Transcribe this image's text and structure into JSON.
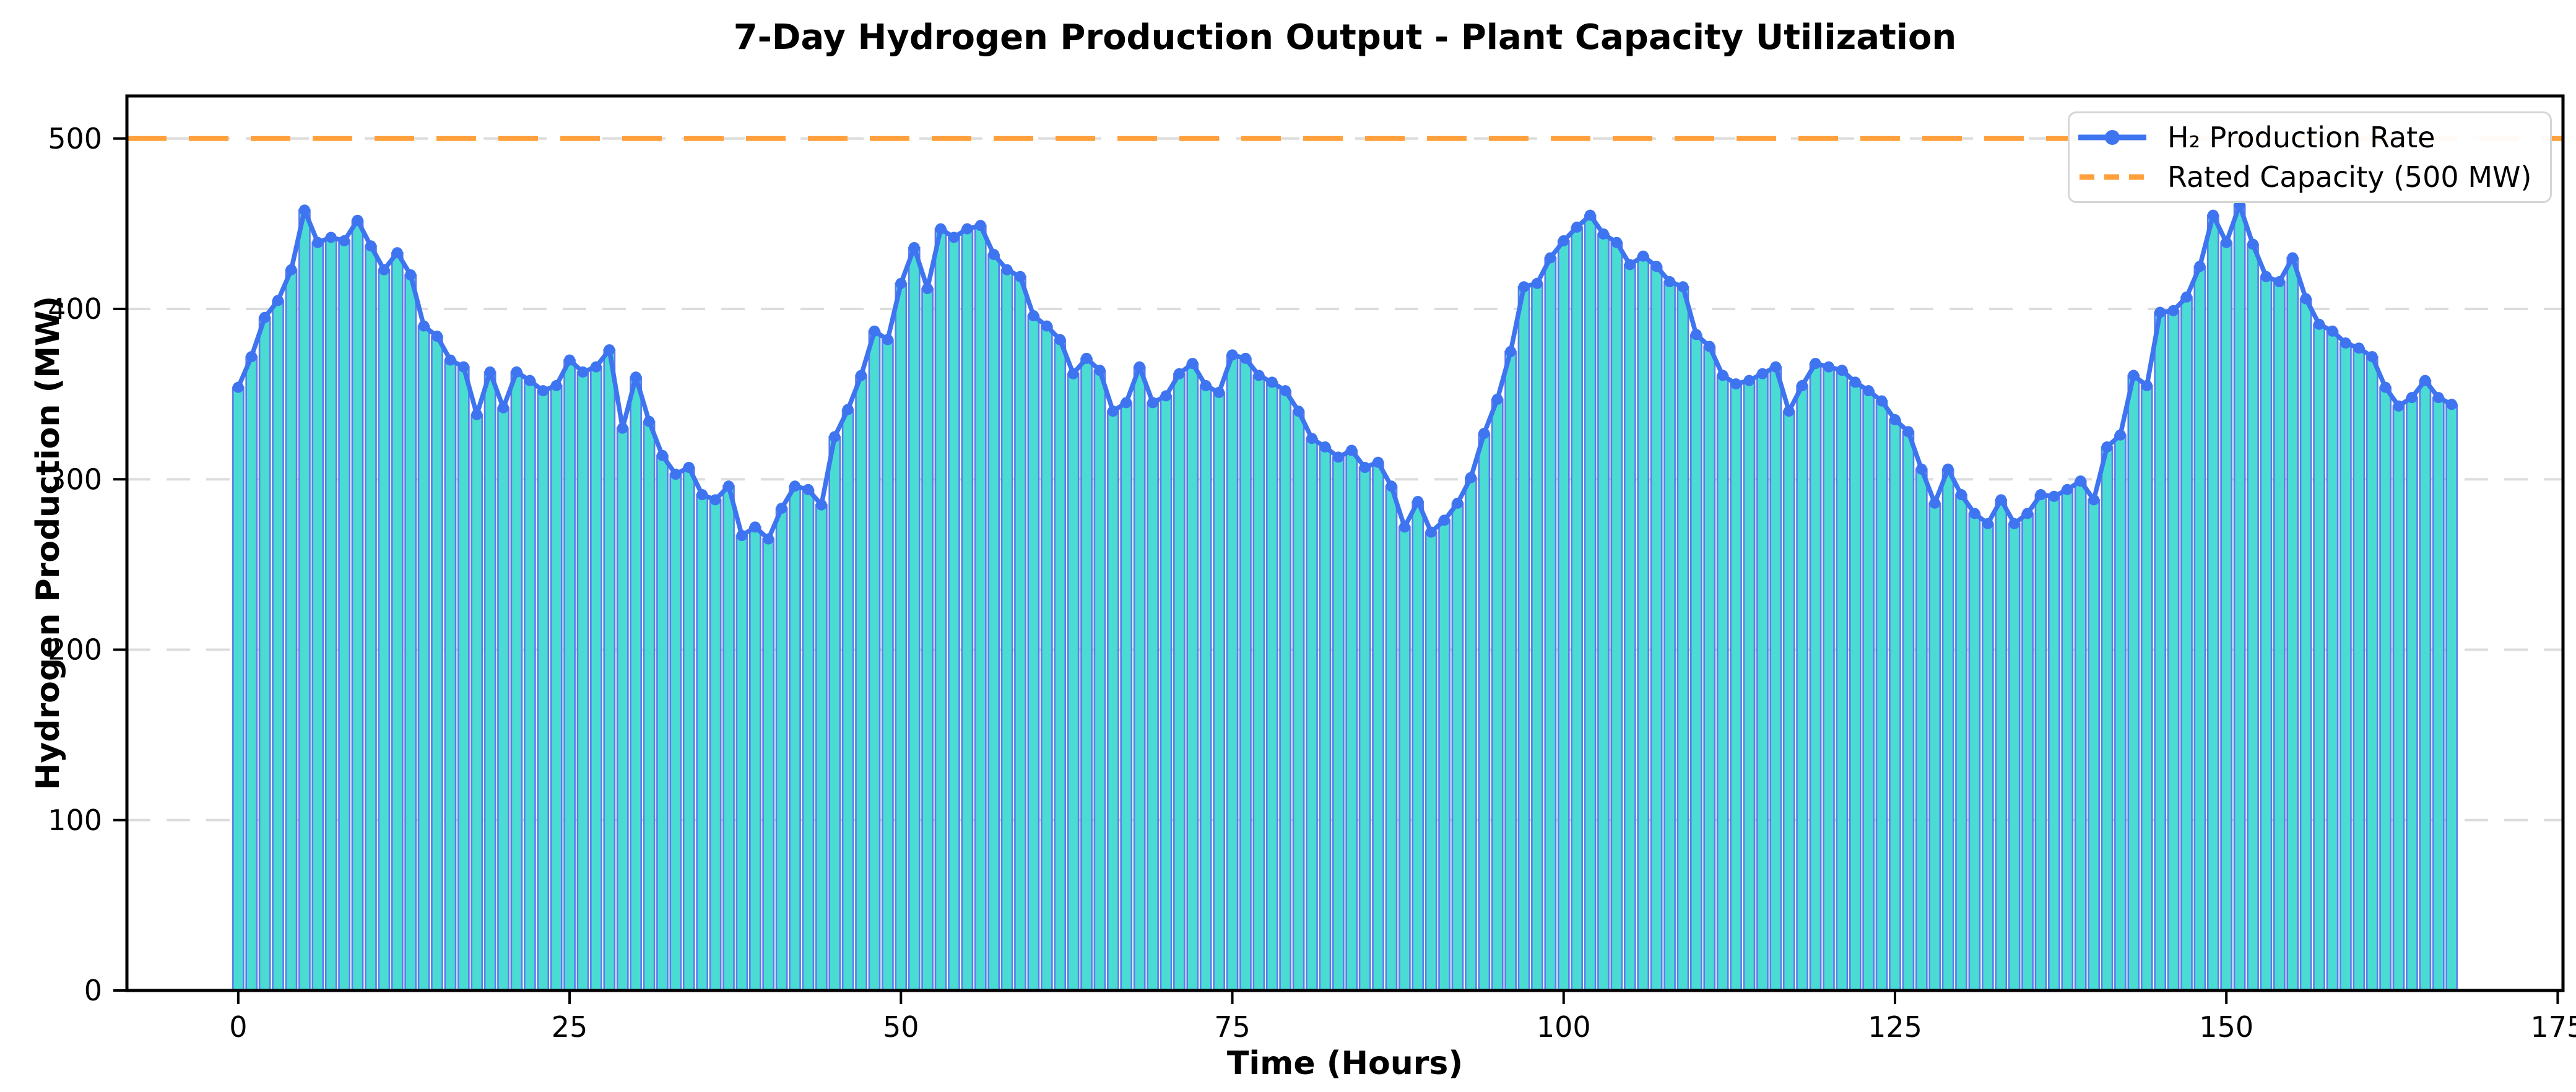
{
  "chart_data": {
    "type": "line",
    "title": "7-Day Hydrogen Production Output - Plant Capacity Utilization",
    "xlabel": "Time (Hours)",
    "ylabel": "Hydrogen Production (MW)",
    "x_start": 0,
    "x_step": 1,
    "xlim": [
      -8.4,
      175.4
    ],
    "ylim": [
      0,
      525
    ],
    "xticks": [
      0,
      25,
      50,
      75,
      100,
      125,
      150,
      175
    ],
    "yticks": [
      0,
      100,
      200,
      300,
      400,
      500
    ],
    "grid": "horizontal-dashed",
    "legend_position": "top-right",
    "series": [
      {
        "name": "H₂ Production Rate",
        "style": "bars-with-line-markers",
        "unit": "MW",
        "values": [
          354,
          372,
          395,
          405,
          423,
          458,
          439,
          442,
          440,
          452,
          437,
          423,
          433,
          420,
          390,
          384,
          370,
          366,
          338,
          363,
          342,
          363,
          358,
          352,
          355,
          370,
          363,
          366,
          376,
          330,
          360,
          334,
          314,
          303,
          307,
          291,
          288,
          296,
          267,
          272,
          265,
          283,
          296,
          294,
          285,
          325,
          341,
          361,
          387,
          382,
          415,
          436,
          412,
          447,
          442,
          447,
          449,
          432,
          423,
          419,
          396,
          390,
          382,
          362,
          371,
          364,
          340,
          345,
          366,
          345,
          349,
          362,
          368,
          355,
          351,
          373,
          371,
          361,
          357,
          352,
          340,
          324,
          319,
          313,
          317,
          307,
          310,
          296,
          272,
          287,
          269,
          276,
          286,
          301,
          327,
          347,
          375,
          413,
          415,
          430,
          440,
          448,
          455,
          444,
          439,
          426,
          431,
          425,
          416,
          413,
          385,
          378,
          361,
          356,
          358,
          362,
          366,
          340,
          355,
          368,
          366,
          364,
          357,
          352,
          346,
          335,
          328,
          306,
          286,
          306,
          291,
          280,
          274,
          288,
          274,
          280,
          291,
          290,
          294,
          299,
          288,
          319,
          326,
          361,
          355,
          398,
          399,
          407,
          425,
          455,
          439,
          461,
          438,
          419,
          416,
          430,
          406,
          391,
          387,
          380,
          377,
          372,
          354,
          343,
          348,
          358,
          348,
          344
        ]
      },
      {
        "name": "Rated Capacity (500 MW)",
        "style": "dashed-horizontal-line",
        "unit": "MW",
        "value": 500
      }
    ],
    "colors": {
      "line": "#3E74F0",
      "marker": "#3E74F0",
      "bar_fill": "#4ADCD2",
      "bar_edge": "#5B7BEE",
      "capacity": "#FFA03C",
      "grid": "#DCDCDC",
      "spine": "#000000",
      "legend_border": "#D5D5D5"
    }
  }
}
